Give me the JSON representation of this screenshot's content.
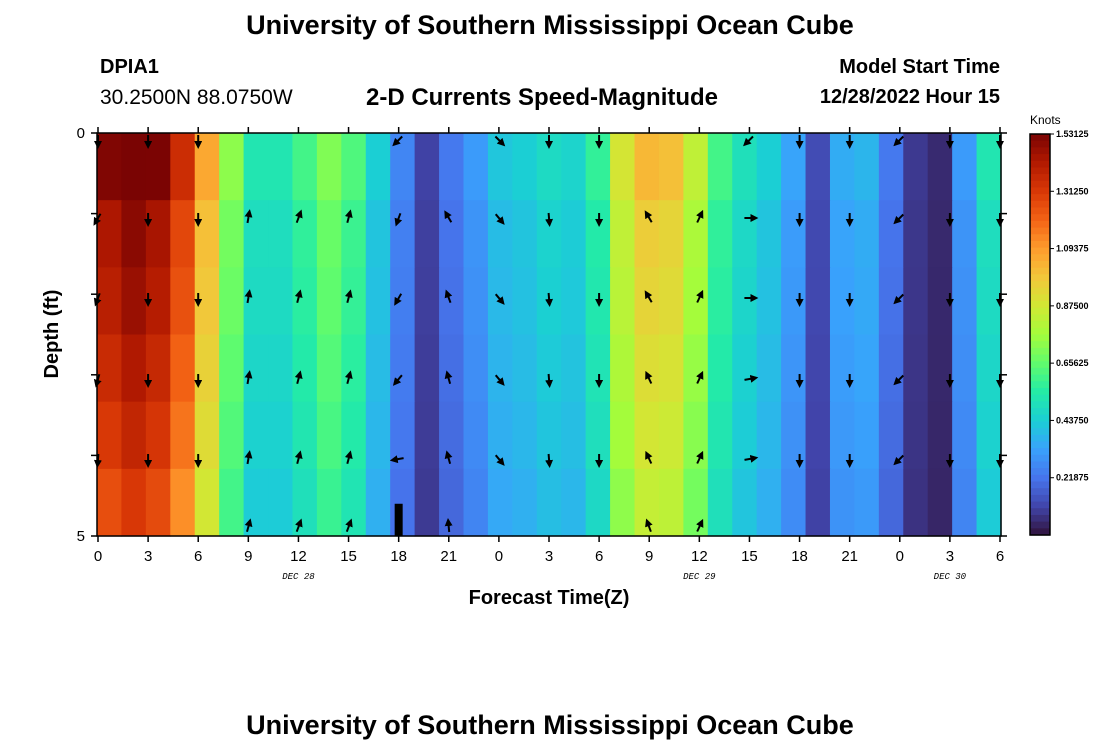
{
  "header": {
    "title": "University of Southern Mississippi Ocean Cube",
    "station_id": "DPIA1",
    "station_coords": "30.2500N  88.0750W",
    "product": "2-D Currents Speed-Magnitude",
    "start_label": "Model Start Time",
    "start_value": "12/28/2022 Hour 15"
  },
  "footer": {
    "title": "University of Southern Mississippi Ocean Cube"
  },
  "chart_data": {
    "type": "heatmap",
    "title": "2-D Currents Speed-Magnitude",
    "xlabel": "Forecast Time(Z)",
    "ylabel": "Depth (ft)",
    "x_tick_labels": [
      "0",
      "3",
      "6",
      "9",
      "12",
      "15",
      "18",
      "21",
      "0",
      "3",
      "6",
      "9",
      "12",
      "15",
      "18",
      "21",
      "0",
      "3",
      "6"
    ],
    "date_labels": [
      {
        "text": "DEC 28",
        "x_index": 4
      },
      {
        "text": "DEC 29",
        "x_index": 12
      },
      {
        "text": "DEC 30",
        "x_index": 17
      }
    ],
    "y_tick_labels": [
      "0",
      "5"
    ],
    "ylim": [
      0,
      5
    ],
    "colorbar": {
      "unit": "Knots",
      "labels": [
        "1.53125",
        "1.31250",
        "1.09375",
        "0.87500",
        "0.65625",
        "0.43750",
        "0.21875"
      ],
      "values": [
        1.53125,
        1.3125,
        1.09375,
        0.875,
        0.65625,
        0.4375,
        0.21875
      ],
      "vmin": 0,
      "vmax": 1.53125,
      "colormap": [
        "#30123b",
        "#4145ab",
        "#4675ed",
        "#39a2fc",
        "#1bcfd4",
        "#24eca6",
        "#61fc6c",
        "#a4fc3b",
        "#d1e834",
        "#f3c63a",
        "#fe9b2d",
        "#f36315",
        "#d93806",
        "#b11901",
        "#7a0403"
      ]
    },
    "time_columns": 37,
    "speed_profile": [
      1.46,
      1.53,
      1.47,
      1.3,
      1.02,
      0.7,
      0.5,
      0.5,
      0.58,
      0.68,
      0.6,
      0.42,
      0.25,
      0.1,
      0.22,
      0.3,
      0.4,
      0.42,
      0.46,
      0.44,
      0.55,
      0.85,
      0.98,
      0.96,
      0.8,
      0.58,
      0.48,
      0.42,
      0.32,
      0.12,
      0.34,
      0.36,
      0.22,
      0.08,
      0.05,
      0.3,
      0.5
    ],
    "depth_factors": [
      1.04,
      0.98,
      0.96,
      0.93,
      0.9,
      0.86
    ],
    "vectors": {
      "x_indices": [
        0,
        1,
        2,
        3,
        4,
        5,
        6,
        7,
        8,
        9,
        10,
        11,
        12,
        13,
        14,
        15,
        16,
        17,
        18
      ],
      "layer_depths": [
        0,
        1,
        2,
        3,
        4,
        5
      ],
      "directions_deg": [
        [
          180,
          180,
          180,
          null,
          null,
          null,
          225,
          null,
          135,
          180,
          180,
          null,
          null,
          225,
          180,
          180,
          225,
          180,
          180
        ],
        [
          210,
          180,
          180,
          10,
          20,
          15,
          200,
          330,
          140,
          175,
          180,
          330,
          25,
          90,
          180,
          180,
          225,
          180,
          180
        ],
        [
          200,
          180,
          180,
          10,
          15,
          15,
          210,
          340,
          140,
          175,
          180,
          330,
          25,
          90,
          180,
          180,
          225,
          180,
          180
        ],
        [
          195,
          180,
          180,
          10,
          15,
          15,
          220,
          345,
          140,
          175,
          180,
          335,
          25,
          80,
          180,
          180,
          225,
          180,
          180
        ],
        [
          185,
          180,
          180,
          10,
          15,
          15,
          260,
          345,
          140,
          175,
          180,
          335,
          25,
          80,
          180,
          180,
          225,
          180,
          180
        ],
        [
          null,
          null,
          null,
          15,
          20,
          20,
          null,
          355,
          null,
          null,
          null,
          340,
          25,
          null,
          null,
          null,
          null,
          null,
          null
        ]
      ]
    },
    "marker": {
      "x_index": 6,
      "depth_from": 4.6,
      "depth_to": 5
    }
  }
}
